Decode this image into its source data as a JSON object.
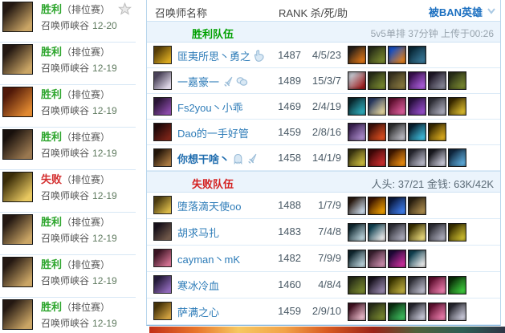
{
  "colors": {
    "win": "#2ca52c",
    "lose": "#d43030",
    "link": "#2e7cb8",
    "ban_link": "#1b6fc0",
    "band_bg": "#ebf4fc"
  },
  "sidebar": {
    "entries": [
      {
        "result": "胜利",
        "win": true,
        "mode": "（排位赛）",
        "map": "召唤师峡谷",
        "date": "12-20",
        "starred": true,
        "avatar": [
          "#241812",
          "#caa565"
        ]
      },
      {
        "result": "胜利",
        "win": true,
        "mode": "（排位赛）",
        "map": "召唤师峡谷",
        "date": "12-19",
        "starred": false,
        "avatar": [
          "#241812",
          "#caa565"
        ]
      },
      {
        "result": "胜利",
        "win": true,
        "mode": "（排位赛）",
        "map": "召唤师峡谷",
        "date": "12-19",
        "starred": false,
        "avatar": [
          "#501808",
          "#e08830"
        ]
      },
      {
        "result": "胜利",
        "win": true,
        "mode": "（排位赛）",
        "map": "召唤师峡谷",
        "date": "12-19",
        "starred": false,
        "avatar": [
          "#18100c",
          "#9a7850"
        ]
      },
      {
        "result": "失败",
        "win": false,
        "mode": "（排位赛）",
        "map": "召唤师峡谷",
        "date": "12-19",
        "starred": false,
        "avatar": [
          "#3a2c08",
          "#e8c860"
        ]
      },
      {
        "result": "胜利",
        "win": true,
        "mode": "（排位赛）",
        "map": "召唤师峡谷",
        "date": "12-19",
        "starred": false,
        "avatar": [
          "#241812",
          "#caa565"
        ]
      },
      {
        "result": "胜利",
        "win": true,
        "mode": "（排位赛）",
        "map": "召唤师峡谷",
        "date": "12-19",
        "starred": false,
        "avatar": [
          "#241812",
          "#caa565"
        ]
      },
      {
        "result": "胜利",
        "win": true,
        "mode": "（排位赛）",
        "map": "召唤师峡谷",
        "date": "12-19",
        "starred": false,
        "avatar": [
          "#241812",
          "#caa565"
        ]
      }
    ]
  },
  "table": {
    "header": {
      "name": "召唤师名称",
      "rank": "RANK 杀/死/助",
      "ban": "被BAN英雄"
    },
    "teams": [
      {
        "type": "win",
        "label": "胜利队伍",
        "info": "5v5单排 37分钟 上传于00:26",
        "players": [
          {
            "name": "匪夷所思丶勇之",
            "badges": [
              "hand-icon"
            ],
            "rank": "1487",
            "kda": "4/5/23",
            "self": false,
            "avatar": [
              "#553c08",
              "#d8a820"
            ],
            "items": [
              [
                "#2a2018",
                "#e07818"
              ],
              [
                "#2a3018",
                "#7a8a30"
              ],
              [
                "#1a50c0",
                "#e08020"
              ],
              [
                "#0a2a3a",
                "#3a7a9a"
              ]
            ]
          },
          {
            "name": "一嘉豪一",
            "badges": [
              "dagger-icon",
              "coins-icon"
            ],
            "rank": "1489",
            "kda": "15/3/7",
            "self": false,
            "avatar": [
              "#4a4258",
              "#ded6e6"
            ],
            "items": [
              [
                "#c0c0c8",
                "#a02020"
              ],
              [
                "#2a3018",
                "#7a8a30"
              ],
              [
                "#3a3420",
                "#8a7a40"
              ],
              [
                "#3a1050",
                "#b060e0"
              ],
              [
                "#201828",
                "#8a8a9a"
              ],
              [
                "#2a3018",
                "#7a8a30"
              ]
            ]
          },
          {
            "name": "Fs2you丶小乖",
            "badges": [],
            "rank": "1469",
            "kda": "2/4/19",
            "self": false,
            "avatar": [
              "#2a1535",
              "#8a4aa8"
            ],
            "items": [
              [
                "#0a2a30",
                "#30b0c0"
              ],
              [
                "#2a3a60",
                "#e8d8a0"
              ],
              [
                "#601030",
                "#e060a0"
              ],
              [
                "#2a1040",
                "#9a50d0"
              ],
              [
                "#303038",
                "#b0b0c0"
              ],
              [
                "#3a2a00",
                "#e0c030"
              ]
            ]
          },
          {
            "name": "Dao的一手好管",
            "badges": [],
            "rank": "1459",
            "kda": "2/8/16",
            "self": false,
            "avatar": [
              "#200808",
              "#7a2418"
            ],
            "items": [
              [
                "#3a2050",
                "#b090d0"
              ],
              [
                "#401008",
                "#e05020"
              ],
              [
                "#303030",
                "#c0c0c8"
              ],
              [
                "#082030",
                "#40c0e0"
              ],
              [
                "#3a2a00",
                "#e0b020"
              ]
            ]
          },
          {
            "name": "你想干啥丶",
            "badges": [
              "ghost-icon",
              "dagger-icon"
            ],
            "rank": "1458",
            "kda": "14/1/9",
            "self": true,
            "avatar": [
              "#221408",
              "#a87840"
            ],
            "items": [
              [
                "#3a3510",
                "#d0c040"
              ],
              [
                "#400808",
                "#d03030"
              ],
              [
                "#401800",
                "#f09010"
              ],
              [
                "#282830",
                "#c0c0d0"
              ],
              [
                "#1a1a20",
                "#d0d0e0"
              ],
              [
                "#102840",
                "#60b0e0"
              ]
            ]
          }
        ]
      },
      {
        "type": "lose",
        "label": "失败队伍",
        "info": "人头: 37/21 金钱: 63K/42K",
        "players": [
          {
            "name": "堕落滴天使oo",
            "badges": [],
            "rank": "1488",
            "kda": "1/7/9",
            "self": false,
            "avatar": [
              "#4a3a10",
              "#d8b848"
            ],
            "items": [
              [
                "#2a1a10",
                "#d0e0f0"
              ],
              [
                "#401800",
                "#f0a000"
              ],
              [
                "#0a1a40",
                "#4080f0"
              ],
              [
                "#2a2010",
                "#b09050"
              ]
            ]
          },
          {
            "name": "胡求马扎",
            "badges": [],
            "rank": "1483",
            "kda": "7/4/8",
            "self": false,
            "avatar": [
              "#171019",
              "#70584a"
            ],
            "items": [
              [
                "#102830",
                "#c0d8e0"
              ],
              [
                "#104050",
                "#f0f0f0"
              ],
              [
                "#303038",
                "#b0b0c0"
              ],
              [
                "#3a3000",
                "#f0e080"
              ],
              [
                "#303038",
                "#b0b0c0"
              ],
              [
                "#3a3000",
                "#d0c030"
              ]
            ]
          },
          {
            "name": "cayman丶mK",
            "badges": [],
            "rank": "1482",
            "kda": "7/9/9",
            "self": false,
            "avatar": [
              "#3a1322",
              "#cf6f8f"
            ],
            "items": [
              [
                "#102830",
                "#c0d8e0"
              ],
              [
                "#3a2030",
                "#d090b0"
              ],
              [
                "#200838",
                "#d030a0"
              ],
              [
                "#104050",
                "#f0f0f0"
              ]
            ]
          },
          {
            "name": "寒冰冷血",
            "badges": [],
            "rank": "1460",
            "kda": "4/8/4",
            "self": false,
            "avatar": [
              "#241a38",
              "#8f68b8"
            ],
            "items": [
              [
                "#2a3018",
                "#7a8a30"
              ],
              [
                "#1a1420",
                "#9a8ab0"
              ],
              [
                "#3a3500",
                "#c0b040"
              ],
              [
                "#303038",
                "#c0c0d0"
              ],
              [
                "#601030",
                "#f080b0"
              ],
              [
                "#0a3008",
                "#40d040"
              ]
            ]
          },
          {
            "name": "萨满之心",
            "badges": [],
            "rank": "1459",
            "kda": "2/9/10",
            "self": false,
            "avatar": [
              "#453208",
              "#cf9f3f"
            ],
            "items": [
              [
                "#401020",
                "#f0c0d0"
              ],
              [
                "#2a3018",
                "#7a8a30"
              ],
              [
                "#0a3010",
                "#40c060"
              ],
              [
                "#282830",
                "#d0d0e0"
              ],
              [
                "#601030",
                "#f080b0"
              ],
              [
                "#282830",
                "#d0d0e0"
              ]
            ]
          }
        ]
      }
    ]
  },
  "ad_banner": {
    "gradient": [
      "#c23018",
      "#e8742a",
      "#f6c860",
      "#f2a348",
      "#d85a20",
      "#9a2418",
      "#50603a",
      "#2f5e54",
      "#303646"
    ]
  }
}
